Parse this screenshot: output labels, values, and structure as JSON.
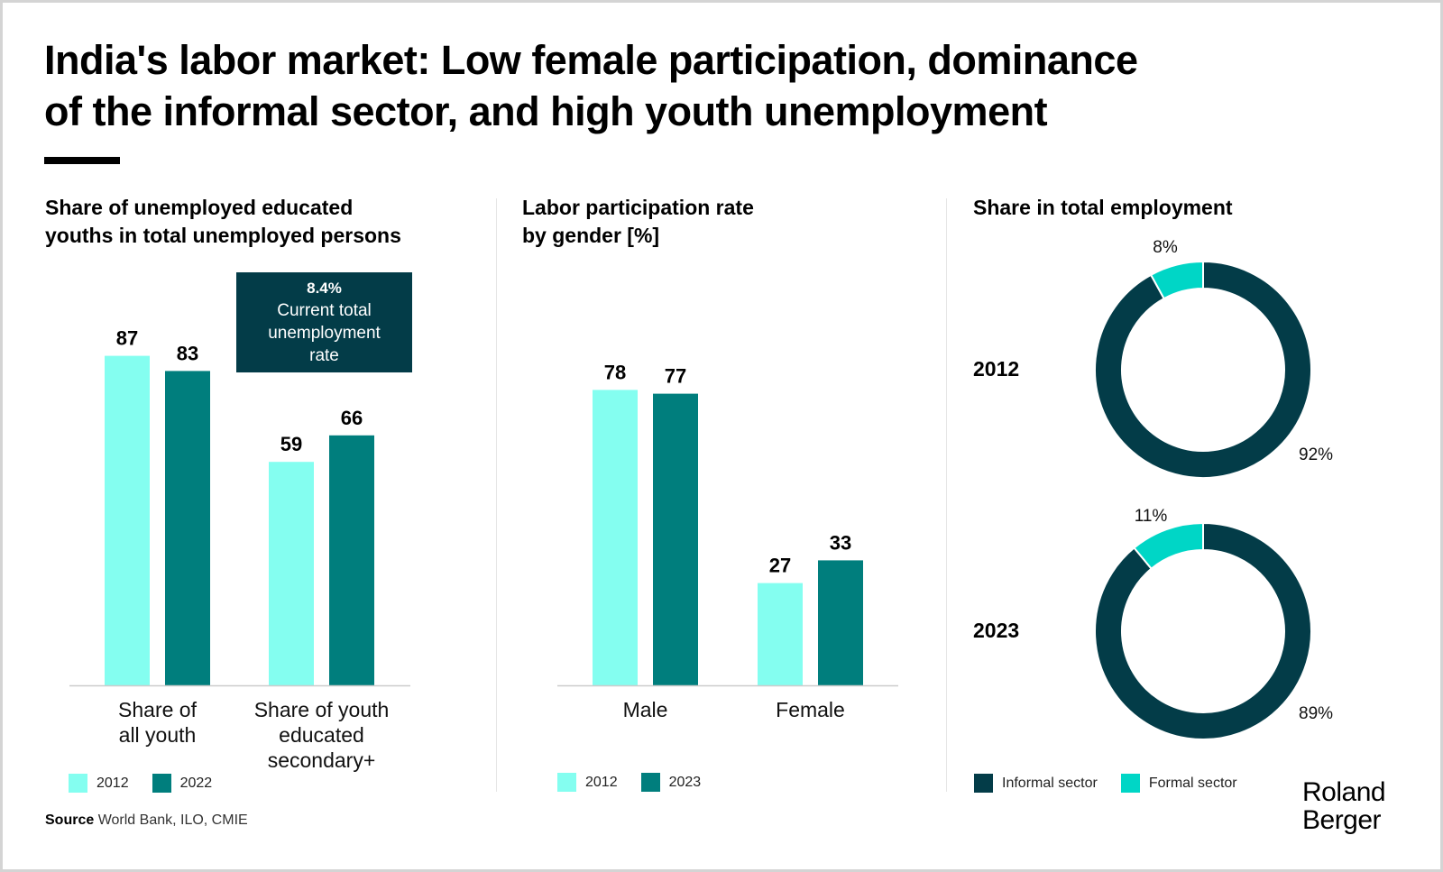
{
  "title": {
    "line1": "India's labor market: Low female participation, dominance",
    "line2": "of the informal sector, and high youth unemployment"
  },
  "colors": {
    "light_teal": "#84fef0",
    "dark_teal": "#007e7d",
    "navy": "#033c48",
    "formal": "#00d6c6",
    "axis": "#cccccc"
  },
  "callout": {
    "value": "8.4%",
    "line1": "Current total",
    "line2": "unemployment",
    "line3": "rate"
  },
  "source": {
    "label": "Source",
    "text": "World Bank, ILO, CMIE"
  },
  "logo": {
    "line1": "Roland",
    "line2": "Berger"
  },
  "chart_data": [
    {
      "type": "bar",
      "title": "Share of unemployed educated youths in total unemployed persons",
      "title_lines": [
        "Share of unemployed educated",
        "youths in total unemployed persons"
      ],
      "categories": [
        "Share of all youth",
        "Share of youth educated secondary+"
      ],
      "category_lines": [
        [
          "Share of",
          "all youth"
        ],
        [
          "Share of youth",
          "educated",
          "secondary+"
        ]
      ],
      "series": [
        {
          "name": "2012",
          "values": [
            87,
            59
          ],
          "color": "#84fef0"
        },
        {
          "name": "2022",
          "values": [
            83,
            66
          ],
          "color": "#007e7d"
        }
      ],
      "ylim": [
        0,
        100
      ],
      "grid": false,
      "legend": "bottom-left"
    },
    {
      "type": "bar",
      "title": "Labor participation rate by gender [%]",
      "title_lines": [
        "Labor participation rate",
        "by gender [%]"
      ],
      "categories": [
        "Male",
        "Female"
      ],
      "category_lines": [
        [
          "Male"
        ],
        [
          "Female"
        ]
      ],
      "series": [
        {
          "name": "2012",
          "values": [
            78,
            27
          ],
          "color": "#84fef0"
        },
        {
          "name": "2023",
          "values": [
            77,
            33
          ],
          "color": "#007e7d"
        }
      ],
      "ylim": [
        0,
        100
      ],
      "grid": false,
      "legend": "bottom-left"
    },
    {
      "type": "pie",
      "title": "Share in total employment",
      "donuts": [
        {
          "year": "2012",
          "slices": [
            {
              "name": "Informal sector",
              "value": 92,
              "label": "92%"
            },
            {
              "name": "Formal sector",
              "value": 8,
              "label": "8%"
            }
          ]
        },
        {
          "year": "2023",
          "slices": [
            {
              "name": "Informal sector",
              "value": 89,
              "label": "89%"
            },
            {
              "name": "Formal sector",
              "value": 11,
              "label": "11%"
            }
          ]
        }
      ],
      "legend_entries": [
        {
          "name": "Informal sector",
          "color": "#033c48"
        },
        {
          "name": "Formal sector",
          "color": "#00d6c6"
        }
      ],
      "legend": "bottom-left"
    }
  ]
}
